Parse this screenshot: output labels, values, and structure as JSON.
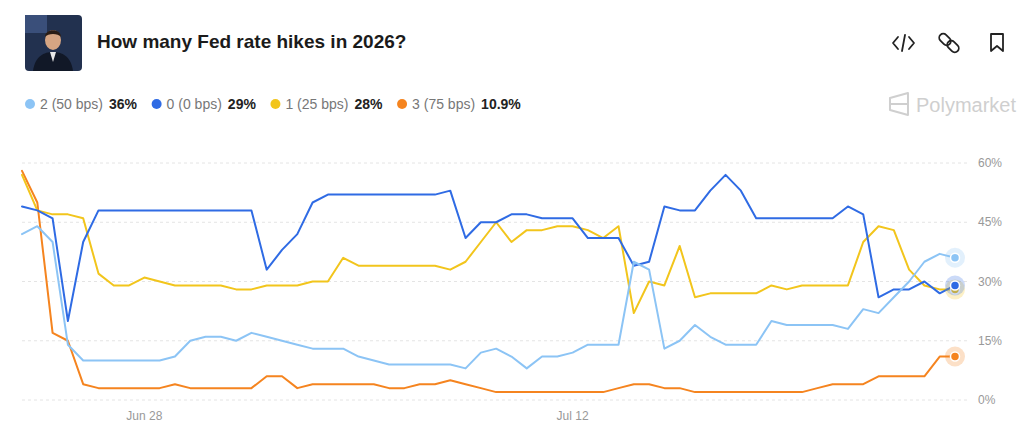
{
  "chart_data": {
    "type": "line",
    "title": "How many Fed rate hikes in 2026?",
    "watermark": "Polymarket",
    "categories": [
      null,
      null,
      null,
      null,
      null,
      null,
      null,
      null,
      "Jun 28",
      null,
      null,
      null,
      null,
      null,
      null,
      null,
      null,
      null,
      null,
      null,
      null,
      null,
      null,
      null,
      null,
      null,
      null,
      null,
      null,
      null,
      null,
      null,
      null,
      null,
      null,
      null,
      "Jul 12",
      null,
      null,
      null,
      null,
      null,
      null,
      null,
      null,
      null,
      null,
      null,
      null,
      null,
      null,
      null,
      null,
      null,
      null,
      null,
      null,
      null,
      null,
      null,
      null,
      null
    ],
    "series": [
      {
        "name": "2 (50 bps)",
        "current_label": "36%",
        "color": "#8cc4f5",
        "marker": "end",
        "values": [
          42,
          44,
          40,
          14,
          10,
          10,
          10,
          10,
          10,
          10,
          11,
          15,
          16,
          16,
          15,
          17,
          16,
          15,
          14,
          13,
          13,
          13,
          11,
          10,
          9,
          9,
          9,
          9,
          9,
          8,
          12,
          13,
          11,
          8,
          11,
          11,
          12,
          14,
          14,
          14,
          35,
          33,
          13,
          15,
          19,
          16,
          14,
          14,
          14,
          20,
          19,
          19,
          19,
          19,
          18,
          23,
          22,
          26,
          30,
          35,
          37,
          36
        ]
      },
      {
        "name": "0 (0 bps)",
        "current_label": "29%",
        "color": "#2f6be4",
        "marker": "end",
        "values": [
          49,
          48,
          46,
          20,
          40,
          48,
          48,
          48,
          48,
          48,
          48,
          48,
          48,
          48,
          48,
          48,
          33,
          38,
          42,
          50,
          52,
          52,
          52,
          52,
          52,
          52,
          52,
          52,
          53,
          41,
          45,
          45,
          47,
          47,
          46,
          46,
          46,
          41,
          41,
          41,
          34,
          35,
          49,
          48,
          48,
          53,
          57,
          53,
          46,
          46,
          46,
          46,
          46,
          46,
          49,
          47,
          26,
          28,
          28,
          30,
          27,
          29
        ]
      },
      {
        "name": "1 (25 bps)",
        "current_label": "28%",
        "color": "#f2c51c",
        "marker": "end",
        "values": [
          57,
          48,
          47,
          47,
          46,
          32,
          29,
          29,
          31,
          30,
          29,
          29,
          29,
          29,
          28,
          28,
          29,
          29,
          29,
          30,
          30,
          36,
          34,
          34,
          34,
          34,
          34,
          34,
          33,
          35,
          40,
          45,
          40,
          43,
          43,
          44,
          44,
          43,
          41,
          44,
          22,
          30,
          29,
          39,
          26,
          27,
          27,
          27,
          27,
          29,
          28,
          29,
          29,
          29,
          29,
          40,
          44,
          43,
          33,
          29,
          28,
          28
        ]
      },
      {
        "name": "3 (75 bps)",
        "current_label": "10.9%",
        "color": "#f5841f",
        "marker": "end",
        "values": [
          58,
          50,
          17,
          15,
          4,
          3,
          3,
          3,
          3,
          3,
          4,
          3,
          3,
          3,
          3,
          3,
          6,
          6,
          3,
          4,
          4,
          4,
          4,
          4,
          3,
          3,
          4,
          4,
          5,
          4,
          3,
          2,
          2,
          2,
          2,
          2,
          2,
          2,
          2,
          3,
          4,
          4,
          3,
          3,
          2,
          2,
          2,
          2,
          2,
          2,
          2,
          2,
          3,
          4,
          4,
          4,
          6,
          6,
          6,
          6,
          11,
          11
        ]
      }
    ],
    "ylim": [
      0,
      60
    ],
    "yticks": [
      {
        "value": 0,
        "label": "0%"
      },
      {
        "value": 15,
        "label": "15%"
      },
      {
        "value": 30,
        "label": "30%"
      },
      {
        "value": 45,
        "label": "45%"
      },
      {
        "value": 60,
        "label": "60%"
      }
    ],
    "grid": true,
    "legend": "top-left"
  }
}
